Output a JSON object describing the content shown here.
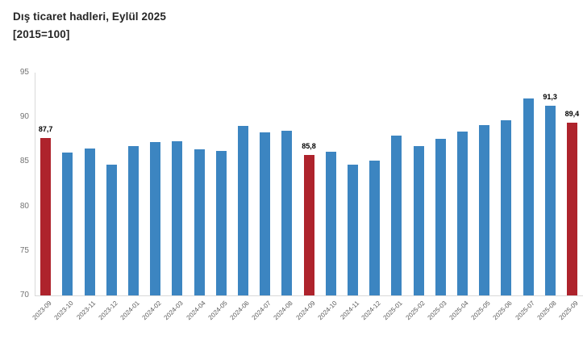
{
  "colors": {
    "background": "#ffffff",
    "bar_default": "#3c85c1",
    "bar_highlight": "#ae232c",
    "axis_line": "#d9d9d9",
    "y_tick_label": "#737373",
    "x_tick_label": "#595959",
    "value_label": "#000000",
    "title": "#262626"
  },
  "chart_data": {
    "type": "bar",
    "title": "Dış ticaret hadleri, Eylül 2025",
    "subtitle": "[2015=100]",
    "xlabel": "",
    "ylabel": "",
    "ylim": [
      70,
      95
    ],
    "yticks": [
      95,
      90,
      85,
      80,
      75,
      70
    ],
    "grid": false,
    "legend": false,
    "categories": [
      "2023-09",
      "2023-10",
      "2023-11",
      "2023-12",
      "2024-01",
      "2024-02",
      "2024-03",
      "2024-04",
      "2024-05",
      "2024-06",
      "2024-07",
      "2024-08",
      "2024-09",
      "2024-10",
      "2024-11",
      "2024-12",
      "2025-01",
      "2025-02",
      "2025-03",
      "2025-04",
      "2025-05",
      "2025-06",
      "2025-07",
      "2025-08",
      "2025-09"
    ],
    "values": [
      87.7,
      86.0,
      86.5,
      84.7,
      86.8,
      87.2,
      87.3,
      86.4,
      86.2,
      89.0,
      88.3,
      88.5,
      85.8,
      86.1,
      84.7,
      85.1,
      87.9,
      86.8,
      87.6,
      88.4,
      89.1,
      89.7,
      92.1,
      91.3,
      89.4
    ],
    "highlight_indices": [
      0,
      12,
      24
    ],
    "point_labels": {
      "0": "87,7",
      "12": "85,8",
      "23": "91,3",
      "24": "89,4"
    }
  }
}
